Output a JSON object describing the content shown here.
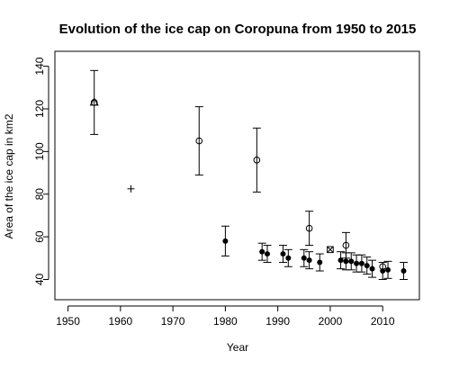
{
  "chart_data": {
    "type": "scatter",
    "title": "Evolution of the ice cap on Coropuna from 1950 to 2015",
    "xlabel": "Year",
    "ylabel": "Area of the ice cap in km2",
    "xlim": [
      1947.5,
      2017
    ],
    "ylim": [
      30.5,
      147
    ],
    "x_ticks": [
      1950,
      1960,
      1970,
      1980,
      1990,
      2000,
      2010
    ],
    "y_ticks": [
      40,
      60,
      80,
      100,
      120,
      140
    ],
    "grid": false,
    "legend": "none",
    "series": [
      {
        "marker": "open-triangle",
        "points": [
          {
            "x": 1955,
            "y": 123,
            "err": [
              108,
              138
            ]
          }
        ]
      },
      {
        "marker": "plus",
        "points": [
          {
            "x": 1962,
            "y": 82.5
          }
        ]
      },
      {
        "marker": "open-circle",
        "points": [
          {
            "x": 1955,
            "y": 123,
            "err": [
              108,
              138
            ]
          },
          {
            "x": 1975,
            "y": 105,
            "err": [
              89,
              121
            ]
          },
          {
            "x": 1986,
            "y": 96,
            "err": [
              81,
              111
            ]
          },
          {
            "x": 1996,
            "y": 64,
            "err": [
              56,
              72
            ]
          },
          {
            "x": 2003,
            "y": 56,
            "err": [
              50,
              62
            ]
          }
        ]
      },
      {
        "marker": "boxed-x",
        "points": [
          {
            "x": 2000,
            "y": 54
          }
        ]
      },
      {
        "marker": "filled-circle",
        "points": [
          {
            "x": 1980,
            "y": 58,
            "err": [
              51,
              65
            ]
          },
          {
            "x": 1987,
            "y": 53,
            "err": [
              49,
              57
            ]
          },
          {
            "x": 1988,
            "y": 52,
            "err": [
              48,
              56
            ]
          },
          {
            "x": 1991,
            "y": 52,
            "err": [
              48,
              56
            ]
          },
          {
            "x": 1992,
            "y": 50,
            "err": [
              46,
              54
            ]
          },
          {
            "x": 1995,
            "y": 50,
            "err": [
              46,
              54
            ]
          },
          {
            "x": 1996,
            "y": 49,
            "err": [
              45,
              53
            ]
          },
          {
            "x": 1998,
            "y": 48,
            "err": [
              44,
              52
            ]
          },
          {
            "x": 2002,
            "y": 49,
            "err": [
              45,
              53
            ]
          },
          {
            "x": 2003,
            "y": 48.5,
            "err": [
              44.5,
              52.5
            ]
          },
          {
            "x": 2004,
            "y": 48.5,
            "err": [
              44.5,
              52.5
            ]
          },
          {
            "x": 2005,
            "y": 47.5,
            "err": [
              43.5,
              51.5
            ]
          },
          {
            "x": 2006,
            "y": 47.5,
            "err": [
              43.5,
              51.5
            ]
          },
          {
            "x": 2007,
            "y": 46.5,
            "err": [
              42.5,
              50.5
            ]
          },
          {
            "x": 2008,
            "y": 45,
            "err": [
              41,
              49
            ]
          },
          {
            "x": 2010,
            "y": 44,
            "err": [
              40,
              48
            ]
          },
          {
            "x": 2011,
            "y": 44.5,
            "err": [
              40.5,
              48.5
            ]
          },
          {
            "x": 2014,
            "y": 44,
            "err": [
              40,
              48
            ]
          }
        ]
      }
    ],
    "extra_markers": [
      {
        "marker": "open-circle",
        "x": 2010,
        "y": 46
      }
    ]
  }
}
